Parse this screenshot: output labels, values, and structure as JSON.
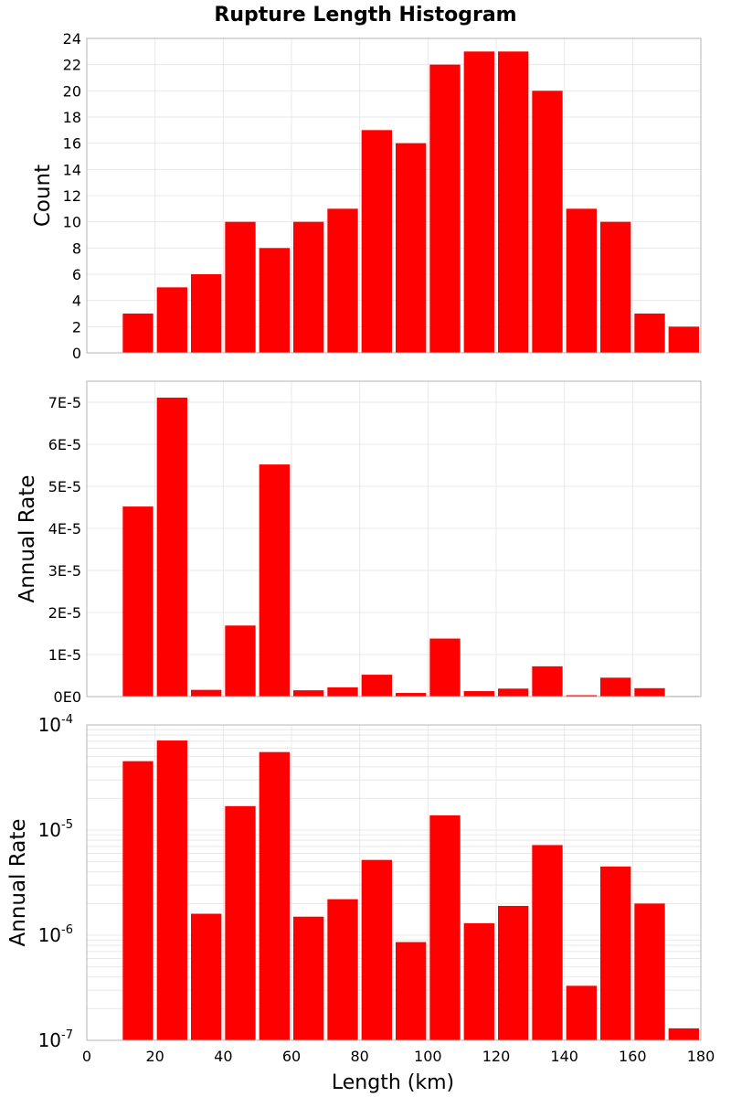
{
  "title": "Rupture Length Histogram",
  "x_axis": {
    "label": "Length (km)",
    "range": [
      0,
      180
    ],
    "ticks": [
      0,
      20,
      40,
      60,
      80,
      100,
      120,
      140,
      160,
      180
    ],
    "tick_labels": [
      "0",
      "20",
      "40",
      "60",
      "80",
      "100",
      "120",
      "140",
      "160",
      "180"
    ]
  },
  "colors": {
    "bar": "#ff0000",
    "grid": "#e8e8e8",
    "frame": "#b4b4b4"
  },
  "chart_data": [
    {
      "type": "bar",
      "ylabel": "Count",
      "ylim": [
        0,
        24
      ],
      "grid": true,
      "yticks": [
        0,
        2,
        4,
        6,
        8,
        10,
        12,
        14,
        16,
        18,
        20,
        22,
        24
      ],
      "ytick_labels": [
        "0",
        "2",
        "4",
        "6",
        "8",
        "10",
        "12",
        "14",
        "16",
        "18",
        "20",
        "22",
        "24"
      ],
      "bin_edges": [
        10,
        20,
        30,
        40,
        50,
        60,
        70,
        80,
        90,
        100,
        110,
        120,
        130,
        140,
        150,
        160,
        170,
        180
      ],
      "x": [
        15,
        25,
        35,
        45,
        55,
        65,
        75,
        85,
        95,
        105,
        115,
        125,
        135,
        145,
        155,
        165,
        175
      ],
      "values": [
        3,
        5,
        6,
        10,
        8,
        10,
        11,
        17,
        16,
        22,
        23,
        23,
        20,
        11,
        10,
        3,
        2
      ]
    },
    {
      "type": "bar",
      "ylabel": "Annual Rate",
      "ylim": [
        0,
        7.5e-05
      ],
      "grid": true,
      "yticks": [
        0,
        1e-05,
        2e-05,
        3e-05,
        4e-05,
        5e-05,
        6e-05,
        7e-05
      ],
      "ytick_labels": [
        "0E0",
        "1E-5",
        "2E-5",
        "3E-5",
        "4E-5",
        "5E-5",
        "6E-5",
        "7E-5"
      ],
      "bin_edges": [
        10,
        20,
        30,
        40,
        50,
        60,
        70,
        80,
        90,
        100,
        110,
        120,
        130,
        140,
        150,
        160,
        170,
        180
      ],
      "x": [
        15,
        25,
        35,
        45,
        55,
        65,
        75,
        85,
        95,
        105,
        115,
        125,
        135,
        145,
        155,
        165,
        175
      ],
      "values": [
        4.52e-05,
        7.11e-05,
        1.6e-06,
        1.69e-05,
        5.52e-05,
        1.5e-06,
        2.2e-06,
        5.2e-06,
        8.6e-07,
        1.38e-05,
        1.3e-06,
        1.9e-06,
        7.2e-06,
        3.3e-07,
        4.5e-06,
        2e-06,
        1.3e-07
      ]
    },
    {
      "type": "bar",
      "ylabel": "Annual Rate",
      "yscale": "log",
      "ylim": [
        1e-07,
        0.0001
      ],
      "grid": true,
      "yticks": [
        1e-07,
        1e-06,
        1e-05,
        0.0001
      ],
      "ytick_labels": [
        {
          "base": "10",
          "exp": "-7"
        },
        {
          "base": "10",
          "exp": "-6"
        },
        {
          "base": "10",
          "exp": "-5"
        },
        {
          "base": "10",
          "exp": "-4"
        }
      ],
      "bin_edges": [
        10,
        20,
        30,
        40,
        50,
        60,
        70,
        80,
        90,
        100,
        110,
        120,
        130,
        140,
        150,
        160,
        170,
        180
      ],
      "x": [
        15,
        25,
        35,
        45,
        55,
        65,
        75,
        85,
        95,
        105,
        115,
        125,
        135,
        145,
        155,
        165,
        175
      ],
      "values": [
        4.52e-05,
        7.11e-05,
        1.6e-06,
        1.69e-05,
        5.52e-05,
        1.5e-06,
        2.2e-06,
        5.2e-06,
        8.6e-07,
        1.38e-05,
        1.3e-06,
        1.9e-06,
        7.2e-06,
        3.3e-07,
        4.5e-06,
        2e-06,
        1.3e-07
      ]
    }
  ]
}
